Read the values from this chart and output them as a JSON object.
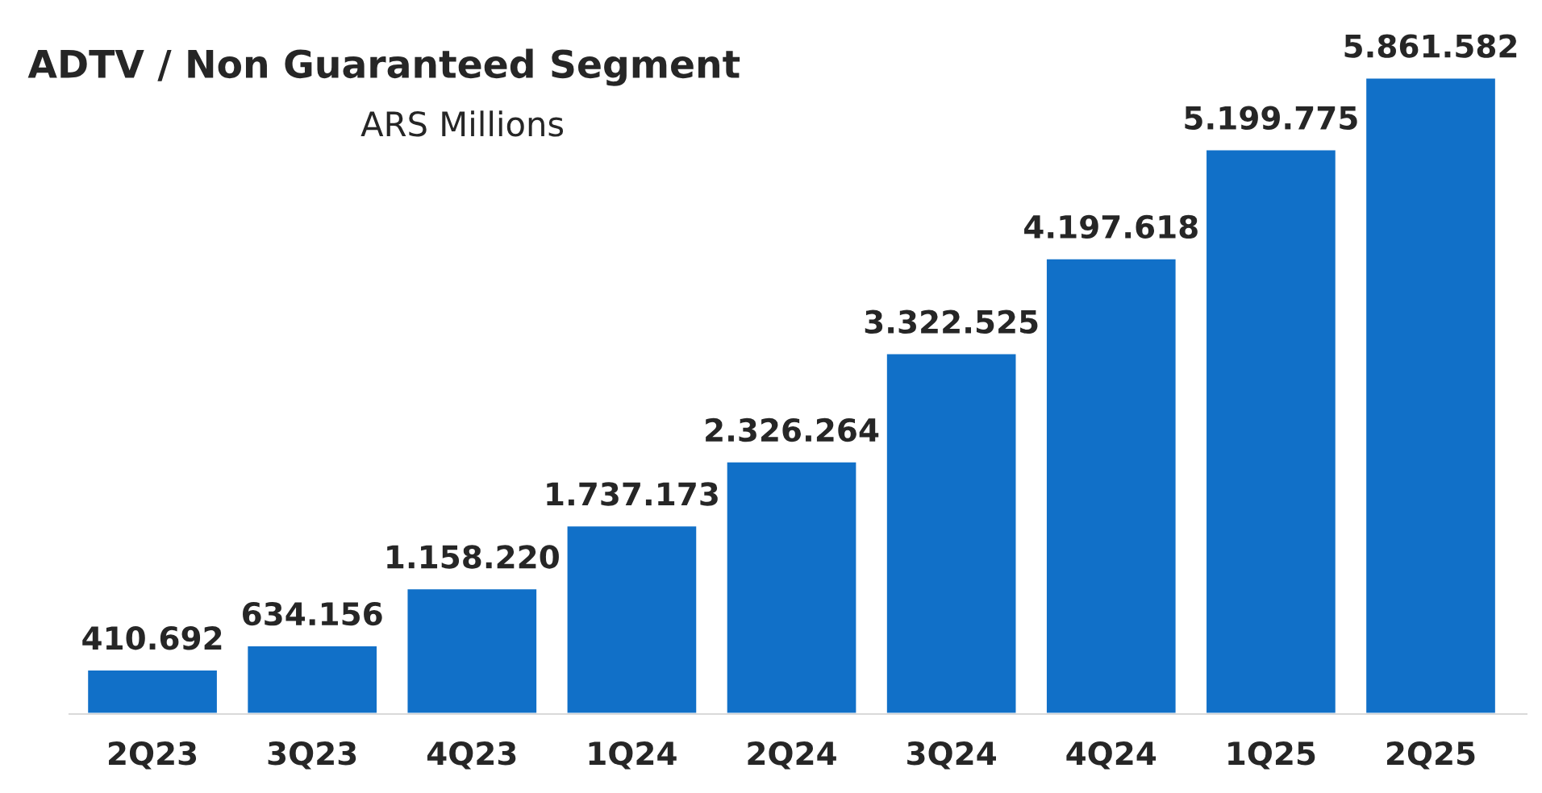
{
  "chart_data": {
    "type": "bar",
    "title": "ADTV / Non Guaranteed Segment",
    "subtitle": "ARS Millions",
    "categories": [
      "2Q23",
      "3Q23",
      "4Q23",
      "1Q24",
      "2Q24",
      "3Q24",
      "4Q24",
      "1Q25",
      "2Q25"
    ],
    "values": [
      410692,
      634156,
      1158220,
      1737173,
      2326264,
      3322525,
      4197618,
      5199775,
      5861582
    ],
    "value_labels": [
      "410.692",
      "634.156",
      "1.158.220",
      "1.737.173",
      "2.326.264",
      "3.322.525",
      "4.197.618",
      "5.199.775",
      "5.861.582"
    ],
    "color": "#1170c8",
    "grid": false,
    "legend": false
  }
}
